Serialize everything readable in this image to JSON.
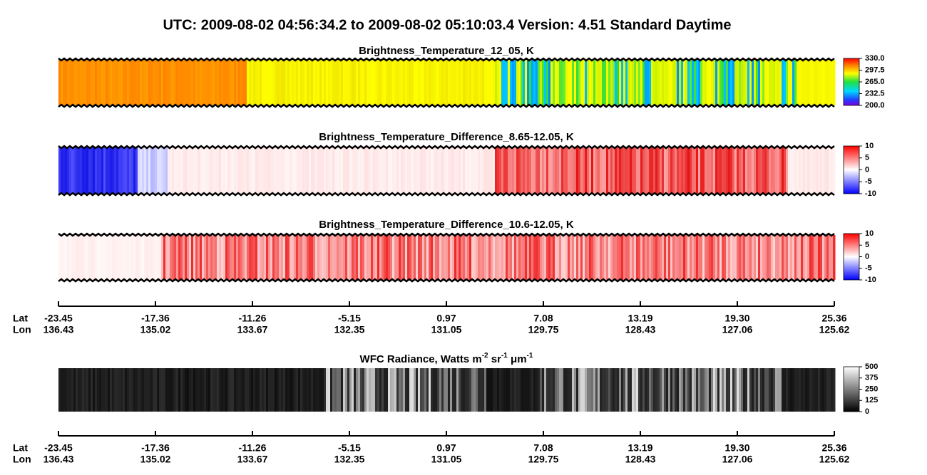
{
  "title": "UTC:  2009-08-02   04:56:34.2  to  2009-08-02   05:10:03.4    Version: 4.51  Standard Daytime",
  "panels": [
    {
      "title": "Brightness_Temperature_12_05, K",
      "colorbar": [
        "330.0",
        "297.5",
        "265.0",
        "232.5",
        "200.0"
      ]
    },
    {
      "title": "Brightness_Temperature_Difference_8.65-12.05, K",
      "colorbar": [
        "10",
        "5",
        "0",
        "-5",
        "-10"
      ]
    },
    {
      "title": "Brightness_Temperature_Difference_10.6-12.05, K",
      "colorbar": [
        "10",
        "5",
        "0",
        "-5",
        "-10"
      ]
    },
    {
      "title": [
        "WFC Radiance, Watts m",
        "-2",
        " sr",
        "-1",
        " μm",
        "-1"
      ],
      "colorbar": [
        "500",
        "375",
        "250",
        "125",
        "0"
      ]
    }
  ],
  "axes": [
    {
      "lat_label": "Lat",
      "lon_label": "Lon",
      "lat": [
        "-23.45",
        "-17.36",
        "-11.26",
        "-5.15",
        "0.97",
        "7.08",
        "13.19",
        "19.30",
        "25.36"
      ],
      "lon": [
        "136.43",
        "135.02",
        "133.67",
        "132.35",
        "131.05",
        "129.75",
        "128.43",
        "127.06",
        "125.62"
      ]
    },
    {
      "lat_label": "Lat",
      "lon_label": "Lon",
      "lat": [
        "-23.45",
        "-17.36",
        "-11.26",
        "-5.15",
        "0.97",
        "7.08",
        "13.19",
        "19.30",
        "25.36"
      ],
      "lon": [
        "136.43",
        "135.02",
        "133.67",
        "132.35",
        "131.05",
        "129.75",
        "128.43",
        "127.06",
        "125.62"
      ]
    }
  ]
}
